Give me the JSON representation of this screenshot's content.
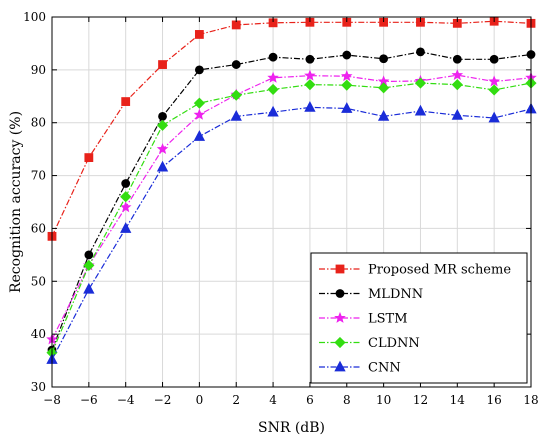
{
  "chart_data": {
    "type": "line",
    "xlabel": "SNR (dB)",
    "ylabel": "Recognition  accuracy (%)",
    "xlim": [
      -8,
      18
    ],
    "ylim": [
      30,
      100
    ],
    "x_ticks": [
      -8,
      -6,
      -4,
      -2,
      0,
      2,
      4,
      6,
      8,
      10,
      12,
      14,
      16,
      18
    ],
    "y_ticks": [
      30,
      40,
      50,
      60,
      70,
      80,
      90,
      100
    ],
    "grid": true,
    "legend_position": "bottom-right",
    "x": [
      -8,
      -6,
      -4,
      -2,
      0,
      2,
      4,
      6,
      8,
      10,
      12,
      14,
      16,
      18
    ],
    "series": [
      {
        "name": "Proposed MR scheme",
        "color": "#e8221a",
        "marker": "square",
        "values": [
          58.5,
          73.4,
          84.0,
          91.0,
          96.7,
          98.5,
          98.9,
          99.0,
          99.0,
          99.0,
          99.0,
          98.8,
          99.2,
          98.8
        ]
      },
      {
        "name": "MLDNN",
        "color": "#000000",
        "marker": "circle",
        "values": [
          37.0,
          55.0,
          68.5,
          81.2,
          90.0,
          91.0,
          92.4,
          92.0,
          92.8,
          92.1,
          93.4,
          92.0,
          92.0,
          92.9
        ]
      },
      {
        "name": "LSTM",
        "color": "#ee22ee",
        "marker": "star",
        "values": [
          39.0,
          53.0,
          64.0,
          75.0,
          81.5,
          85.3,
          88.5,
          88.9,
          88.8,
          87.8,
          87.9,
          89.0,
          87.8,
          88.5
        ]
      },
      {
        "name": "CLDNN",
        "color": "#33dd11",
        "marker": "diamond",
        "values": [
          36.5,
          53.0,
          66.0,
          79.5,
          83.7,
          85.2,
          86.3,
          87.2,
          87.1,
          86.6,
          87.5,
          87.2,
          86.2,
          87.5
        ]
      },
      {
        "name": "CNN",
        "color": "#1a2cd8",
        "marker": "triangle",
        "values": [
          35.2,
          48.5,
          60.0,
          71.6,
          77.4,
          81.2,
          82.0,
          82.9,
          82.7,
          81.2,
          82.2,
          81.4,
          80.9,
          82.6
        ]
      }
    ]
  }
}
